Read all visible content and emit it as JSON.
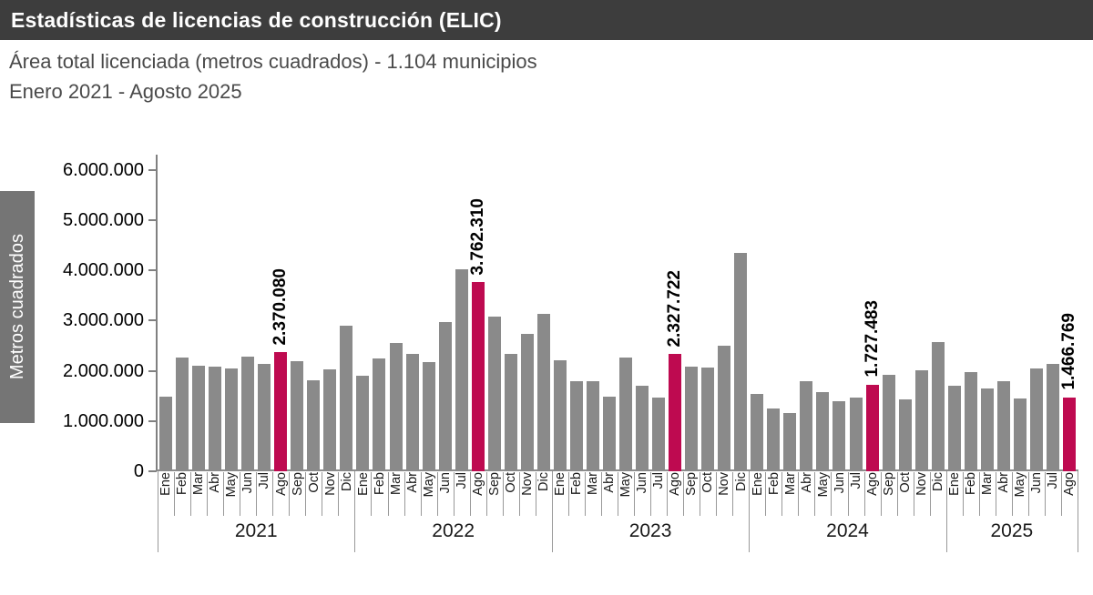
{
  "header": {
    "title": "Estadísticas de licencias de construcción (ELIC)"
  },
  "subtitle": {
    "line1": "Área total licenciada (metros cuadrados) - 1.104 municipios",
    "line2": "Enero 2021 - Agosto 2025"
  },
  "chart_data": {
    "type": "bar",
    "title": "Área total licenciada (metros cuadrados) - 1.104 municipios",
    "period": "Enero 2021 - Agosto 2025",
    "xlabel": "",
    "ylabel": "Metros cuadrados",
    "ylim": [
      0,
      6000000
    ],
    "grid": false,
    "legend": "none",
    "bar_color": "#8a8a8a",
    "highlight_color": "#be0a50",
    "axis_color": "#808080",
    "yticks": [
      {
        "value": 0,
        "label": "0"
      },
      {
        "value": 1000000,
        "label": "1.000.000"
      },
      {
        "value": 2000000,
        "label": "2.000.000"
      },
      {
        "value": 3000000,
        "label": "3.000.000"
      },
      {
        "value": 4000000,
        "label": "4.000.000"
      },
      {
        "value": 5000000,
        "label": "5.000.000"
      },
      {
        "value": 6000000,
        "label": "6.000.000"
      }
    ],
    "years": [
      {
        "year": "2021",
        "months": [
          "Ene",
          "Feb",
          "Mar",
          "Abr",
          "May",
          "Jun",
          "Jul",
          "Ago",
          "Sep",
          "Oct",
          "Nov",
          "Dic"
        ],
        "values": [
          1480000,
          2255000,
          2105000,
          2075000,
          2045000,
          2280000,
          2135000,
          2370080,
          2195000,
          1805000,
          2035000,
          2900000
        ],
        "highlight_index": 7,
        "highlight_label": "2.370.080"
      },
      {
        "year": "2022",
        "months": [
          "Ene",
          "Feb",
          "Mar",
          "Abr",
          "May",
          "Jun",
          "Jul",
          "Ago",
          "Sep",
          "Oct",
          "Nov",
          "Dic"
        ],
        "values": [
          1900000,
          2245000,
          2550000,
          2330000,
          2180000,
          2960000,
          4020000,
          3762310,
          3070000,
          2330000,
          2740000,
          3140000
        ],
        "highlight_index": 7,
        "highlight_label": "3.762.310"
      },
      {
        "year": "2023",
        "months": [
          "Ene",
          "Feb",
          "Mar",
          "Abr",
          "May",
          "Jun",
          "Jul",
          "Ago",
          "Sep",
          "Oct",
          "Nov",
          "Dic"
        ],
        "values": [
          2210000,
          1790000,
          1800000,
          1480000,
          2270000,
          1710000,
          1470000,
          2327722,
          2080000,
          2060000,
          2490000,
          4340000
        ],
        "highlight_index": 7,
        "highlight_label": "2.327.722"
      },
      {
        "year": "2024",
        "months": [
          "Ene",
          "Feb",
          "Mar",
          "Abr",
          "May",
          "Jun",
          "Jul",
          "Ago",
          "Sep",
          "Oct",
          "Nov",
          "Dic"
        ],
        "values": [
          1540000,
          1240000,
          1160000,
          1790000,
          1580000,
          1390000,
          1460000,
          1727483,
          1910000,
          1430000,
          2010000,
          2570000
        ],
        "highlight_index": 7,
        "highlight_label": "1.727.483"
      },
      {
        "year": "2025",
        "months": [
          "Ene",
          "Feb",
          "Mar",
          "Abr",
          "May",
          "Jun",
          "Jul",
          "Ago"
        ],
        "values": [
          1700000,
          1970000,
          1640000,
          1800000,
          1450000,
          2040000,
          2130000,
          1466769
        ],
        "highlight_index": 7,
        "highlight_label": "1.466.769"
      }
    ]
  }
}
